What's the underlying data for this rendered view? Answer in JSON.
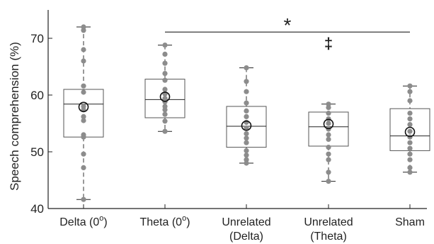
{
  "chart_data": {
    "type": "box",
    "ylabel": "Speech comprehension (%)",
    "ylim": [
      40,
      75
    ],
    "yticks": [
      40,
      50,
      60,
      70
    ],
    "grid": false,
    "categories": [
      {
        "line1": "Delta (0",
        "sup": "o",
        "line1_end": ")",
        "line2": ""
      },
      {
        "line1": "Theta (0",
        "sup": "o",
        "line1_end": ")",
        "line2": ""
      },
      {
        "line1": "Unrelated",
        "sup": "",
        "line1_end": "",
        "line2": "(Delta)"
      },
      {
        "line1": "Unrelated",
        "sup": "",
        "line1_end": "",
        "line2": "(Theta)"
      },
      {
        "line1": "Sham",
        "sup": "",
        "line1_end": "",
        "line2": ""
      }
    ],
    "boxes": [
      {
        "q1": 52.6,
        "median": 58.4,
        "q3": 61.0,
        "whisker_low": 41.6,
        "whisker_high": 72.0,
        "mean": 57.9,
        "points": [
          72.0,
          71.4,
          68.0,
          66.0,
          61.6,
          60.5,
          58.0,
          57.4,
          56.2,
          55.5,
          53.0,
          52.6,
          49.6,
          47.2,
          41.6
        ]
      },
      {
        "q1": 56.0,
        "median": 59.2,
        "q3": 62.8,
        "whisker_low": 53.6,
        "whisker_high": 68.8,
        "mean": 59.7,
        "points": [
          68.8,
          67.2,
          65.6,
          63.8,
          62.6,
          61.0,
          60.2,
          59.4,
          58.8,
          58.0,
          57.4,
          56.6,
          55.4,
          53.6
        ]
      },
      {
        "q1": 50.8,
        "median": 54.5,
        "q3": 58.0,
        "whisker_low": 48.0,
        "whisker_high": 64.8,
        "mean": 54.6,
        "points": [
          64.8,
          62.4,
          60.6,
          58.6,
          57.2,
          56.2,
          55.2,
          54.2,
          53.2,
          52.4,
          51.6,
          50.2,
          49.4,
          48.6,
          48.0
        ]
      },
      {
        "q1": 51.0,
        "median": 54.4,
        "q3": 57.0,
        "whisker_low": 44.8,
        "whisker_high": 58.4,
        "mean": 54.9,
        "points": [
          58.4,
          57.8,
          56.8,
          55.8,
          55.0,
          54.0,
          53.0,
          52.2,
          50.8,
          49.6,
          48.6,
          46.4,
          44.8
        ]
      },
      {
        "q1": 50.2,
        "median": 52.8,
        "q3": 57.6,
        "whisker_low": 46.4,
        "whisker_high": 61.6,
        "mean": 53.5,
        "points": [
          61.6,
          60.6,
          59.0,
          56.8,
          55.8,
          54.8,
          53.6,
          52.6,
          51.6,
          50.6,
          49.6,
          48.6,
          47.2,
          46.4
        ]
      }
    ],
    "significance": {
      "from_category": 1,
      "to_category": 4,
      "y": 71.1,
      "label": "*"
    },
    "annotation": {
      "category": 3,
      "label": "‡",
      "y": 69.2
    }
  }
}
